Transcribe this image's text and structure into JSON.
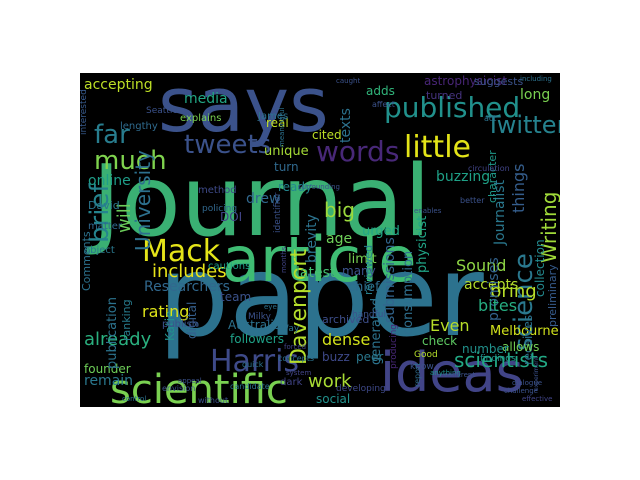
{
  "background_color": "#000000",
  "palette": {
    "navy": "#3b528b",
    "teal": "#2c728e",
    "green": "#21918c",
    "mint": "#27ad81",
    "lime": "#5ec962",
    "yellow": "#d2e21b",
    "purple": "#472d7b",
    "violet": "#440154"
  },
  "words": [
    {
      "text": "Journal",
      "color": "#3ab073"
    },
    {
      "text": "paper",
      "color": "#2c728e"
    },
    {
      "text": "says",
      "color": "#3b528b"
    },
    {
      "text": "article",
      "color": "#3fbc73"
    },
    {
      "text": "ideas",
      "color": "#414487"
    },
    {
      "text": "scientific",
      "color": "#7ad151"
    },
    {
      "text": "published",
      "color": "#21918c"
    },
    {
      "text": "Mack",
      "color": "#e5e419"
    },
    {
      "text": "Harris",
      "color": "#3e4a89"
    },
    {
      "text": "tweets",
      "color": "#3b528b"
    },
    {
      "text": "words",
      "color": "#482878"
    },
    {
      "text": "little",
      "color": "#e3e418"
    },
    {
      "text": "Twitter",
      "color": "#26828e"
    },
    {
      "text": "science",
      "color": "#2a788e"
    },
    {
      "text": "far",
      "color": "#287d8e"
    },
    {
      "text": "much",
      "color": "#7fd34e"
    },
    {
      "text": "brief",
      "color": "#25848e"
    },
    {
      "text": "University",
      "color": "#2d708e"
    },
    {
      "text": "Davenport",
      "color": "#b5de2b"
    },
    {
      "text": "scientists",
      "color": "#22a884"
    },
    {
      "text": "Writing",
      "color": "#a0da39"
    },
    {
      "text": "includes",
      "color": "#e7e419"
    },
    {
      "text": "already",
      "color": "#2ab07f"
    },
    {
      "text": "work",
      "color": "#a8db34"
    },
    {
      "text": "big",
      "color": "#9bd93c"
    },
    {
      "text": "accepting",
      "color": "#bddf26"
    },
    {
      "text": "long",
      "color": "#7ad151"
    },
    {
      "text": "bring",
      "color": "#b8de29"
    },
    {
      "text": "things",
      "color": "#355e8d"
    },
    {
      "text": "brevity",
      "color": "#2c738e"
    },
    {
      "text": "Researchers",
      "color": "#31688e"
    },
    {
      "text": "rating",
      "color": "#dde318"
    },
    {
      "text": "online",
      "color": "#1f9e89"
    },
    {
      "text": "media",
      "color": "#22a785"
    },
    {
      "text": "buzzing",
      "color": "#1fa187"
    },
    {
      "text": "latest",
      "color": "#44bf70"
    },
    {
      "text": "Sound",
      "color": "#8ed645"
    },
    {
      "text": "accepts",
      "color": "#b2dd2d"
    },
    {
      "text": "promises",
      "color": "#33638d"
    },
    {
      "text": "bites",
      "color": "#26ad81"
    },
    {
      "text": "Even",
      "color": "#b8de29"
    },
    {
      "text": "dense",
      "color": "#d2e21b"
    },
    {
      "text": "remain",
      "color": "#2a788e"
    },
    {
      "text": "less",
      "color": "#46337f"
    },
    {
      "text": "social",
      "color": "#21918c"
    },
    {
      "text": "will",
      "color": "#6ccd5a"
    },
    {
      "text": "age",
      "color": "#6ece58"
    },
    {
      "text": "limit",
      "color": "#77d153"
    },
    {
      "text": "urged",
      "color": "#22a785"
    },
    {
      "text": "many",
      "color": "#3b528b"
    },
    {
      "text": "chief",
      "color": "#2e6d8e"
    },
    {
      "text": "texts",
      "color": "#2c728e"
    },
    {
      "text": "real",
      "color": "#c2df23"
    },
    {
      "text": "unique",
      "color": "#a5db36"
    },
    {
      "text": "turn",
      "color": "#30698e"
    },
    {
      "text": "ready",
      "color": "#24878e"
    },
    {
      "text": "drew",
      "color": "#31688e"
    },
    {
      "text": "DOI",
      "color": "#414487"
    },
    {
      "text": "team",
      "color": "#3b528b"
    },
    {
      "text": "Australia",
      "color": "#2c728e"
    },
    {
      "text": "digital",
      "color": "#355f8d"
    },
    {
      "text": "Katie",
      "color": "#21918c"
    },
    {
      "text": "founder",
      "color": "#6ece58"
    },
    {
      "text": "followers",
      "color": "#1fa187"
    },
    {
      "text": "publication",
      "color": "#2c738e"
    },
    {
      "text": "cited",
      "color": "#bddf26"
    },
    {
      "text": "adds",
      "color": "#31b57b"
    },
    {
      "text": "astrophysicist",
      "color": "#482576"
    },
    {
      "text": "suggests",
      "color": "#3b528b"
    },
    {
      "text": "turned",
      "color": "#46337f"
    },
    {
      "text": "physicist",
      "color": "#20a486"
    },
    {
      "text": "Journalist",
      "color": "#2a788e"
    },
    {
      "text": "character",
      "color": "#1f9a8a"
    },
    {
      "text": "collection",
      "color": "#23898e"
    },
    {
      "text": "Melbourne",
      "color": "#d0e11c"
    },
    {
      "text": "receives",
      "color": "#2c728e"
    },
    {
      "text": "preliminary",
      "color": "#365c8d"
    },
    {
      "text": "allows",
      "color": "#75d054"
    },
    {
      "text": "number",
      "color": "#21918c"
    },
    {
      "text": "consumption",
      "color": "#2e6f8e"
    },
    {
      "text": "submissions",
      "color": "#32658e"
    },
    {
      "text": "reviewed",
      "color": "#277f8e"
    },
    {
      "text": "generated",
      "color": "#2c738e"
    },
    {
      "text": "archived",
      "color": "#3d4e8a"
    },
    {
      "text": "buzz",
      "color": "#3e4989"
    },
    {
      "text": "peer",
      "color": "#2a788e"
    },
    {
      "text": "Comments",
      "color": "#2c728e"
    },
    {
      "text": "ranking",
      "color": "#287c8e"
    },
    {
      "text": "David",
      "color": "#2a778e"
    },
    {
      "text": "Seattle",
      "color": "#3b528b"
    },
    {
      "text": "explains",
      "color": "#7ad151"
    },
    {
      "text": "James",
      "color": "#2c728e"
    },
    {
      "text": "lengthy",
      "color": "#2f6b8e"
    },
    {
      "text": "interested",
      "color": "#375a8c"
    },
    {
      "text": "object",
      "color": "#2a788e"
    },
    {
      "text": "publish",
      "color": "#3b528b"
    },
    {
      "text": "method",
      "color": "#3e4a89"
    },
    {
      "text": "cautions",
      "color": "#1fa188"
    },
    {
      "text": "matter",
      "color": "#30698e"
    },
    {
      "text": "Milky",
      "color": "#3b528b"
    },
    {
      "text": "Way",
      "color": "#2c728e"
    },
    {
      "text": "policing",
      "color": "#31688e"
    },
    {
      "text": "Good",
      "color": "#b5de2b"
    },
    {
      "text": "know",
      "color": "#3b528b"
    },
    {
      "text": "check",
      "color": "#5ec962"
    },
    {
      "text": "identifier",
      "color": "#3b528b"
    },
    {
      "text": "dark",
      "color": "#414487"
    },
    {
      "text": "developing",
      "color": "#3e4989"
    },
    {
      "text": "candidate",
      "color": "#2c728e"
    },
    {
      "text": "without",
      "color": "#3b528b"
    },
    {
      "text": "findings",
      "color": "#21918c"
    },
    {
      "text": "report",
      "color": "#2e6d8e"
    },
    {
      "text": "better",
      "color": "#3b528b"
    },
    {
      "text": "circulation",
      "color": "#414487"
    },
    {
      "text": "act",
      "color": "#2c728e"
    },
    {
      "text": "affect",
      "color": "#3b528b"
    },
    {
      "text": "producing",
      "color": "#482878"
    },
    {
      "text": "quick",
      "color": "#2c728e"
    },
    {
      "text": "handful",
      "color": "#3b528b"
    },
    {
      "text": "concepts",
      "color": "#2c728e"
    },
    {
      "text": "envision",
      "color": "#3b528b"
    },
    {
      "text": "system",
      "color": "#414487"
    },
    {
      "text": "anything",
      "color": "#21918c"
    },
    {
      "text": "challenge",
      "color": "#3b528b"
    },
    {
      "text": "dialogue",
      "color": "#3b528b"
    },
    {
      "text": "effective",
      "color": "#414487"
    },
    {
      "text": "experiment",
      "color": "#3b528b"
    },
    {
      "text": "including",
      "color": "#2c728e"
    },
    {
      "text": "coherent",
      "color": "#3b528b"
    },
    {
      "text": "meaningful",
      "color": "#2c728e"
    },
    {
      "text": "enables",
      "color": "#3b528b"
    },
    {
      "text": "appeal",
      "color": "#3b528b"
    },
    {
      "text": "forced",
      "color": "#414487"
    },
    {
      "text": "eye",
      "color": "#2c728e"
    },
    {
      "text": "surrounding",
      "color": "#3b528b"
    },
    {
      "text": "control",
      "color": "#2c728e"
    },
    {
      "text": "months",
      "color": "#414487"
    },
    {
      "text": "caught",
      "color": "#3b528b"
    }
  ]
}
